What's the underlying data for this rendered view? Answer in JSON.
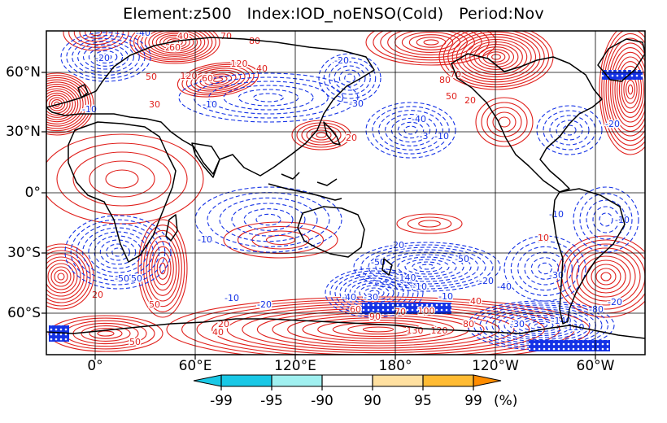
{
  "title": {
    "element": "Element:z500",
    "index": "Index:IOD_noENSO(Cold)",
    "period": "Period:Nov"
  },
  "latitude_labels": [
    "60°N",
    "30°N",
    "0°",
    "30°S",
    "60°S"
  ],
  "longitude_labels": [
    "0°",
    "60°E",
    "120°E",
    "180°",
    "120°W",
    "60°W"
  ],
  "contour_labels_positive": [
    "10",
    "20",
    "30",
    "40",
    "50",
    "60",
    "70",
    "80",
    "90",
    "100",
    "120",
    "130"
  ],
  "contour_labels_negative": [
    "-10",
    "-20",
    "-30",
    "-40",
    "-50",
    "-80",
    "-110",
    "-140",
    "-3"
  ],
  "colorbar": {
    "labels": [
      "-99",
      "-95",
      "-90",
      "90",
      "95",
      "99"
    ],
    "unit": "(%)",
    "colors": [
      "#19c8e6",
      "#a0f0f0",
      "#ffffff",
      "#ffe0a0",
      "#ffbb33",
      "#ff8c00"
    ]
  },
  "colors": {
    "positive_contour": "#e0201c",
    "negative_contour": "#1432e6",
    "coastline": "#000000",
    "stipple": "#ffffff"
  }
}
